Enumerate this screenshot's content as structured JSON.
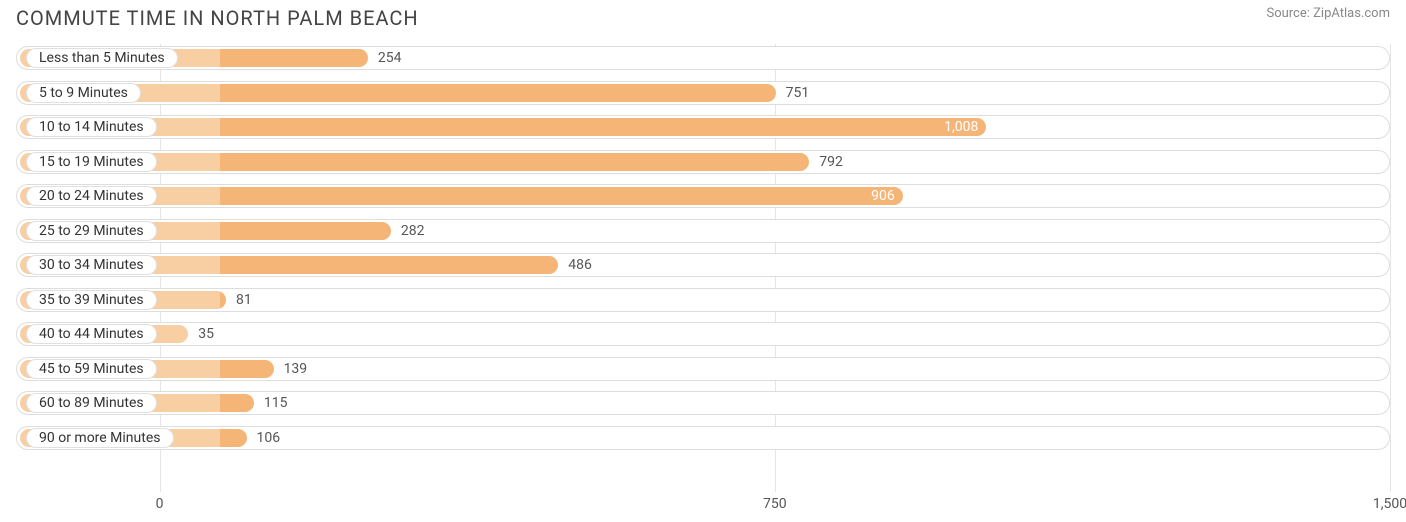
{
  "title": "COMMUTE TIME IN NORTH PALM BEACH",
  "source": "Source: ZipAtlas.com",
  "chart": {
    "type": "bar-horizontal",
    "bar_color": "#f5b576",
    "bar_color_light": "#f8cfa3",
    "track_border": "#dddddd",
    "grid_color": "#e5e5e5",
    "background_color": "#ffffff",
    "label_text_color": "#333333",
    "value_outside_color": "#555555",
    "value_inside_color": "#ffffff",
    "axis_min": -175,
    "axis_max": 1500,
    "axis_ticks": [
      {
        "value": 0,
        "label": "0"
      },
      {
        "value": 750,
        "label": "750"
      },
      {
        "value": 1500,
        "label": "1,500"
      }
    ],
    "value_inside_threshold": 850,
    "rows": [
      {
        "label": "Less than 5 Minutes",
        "value": 254,
        "value_label": "254"
      },
      {
        "label": "5 to 9 Minutes",
        "value": 751,
        "value_label": "751"
      },
      {
        "label": "10 to 14 Minutes",
        "value": 1008,
        "value_label": "1,008"
      },
      {
        "label": "15 to 19 Minutes",
        "value": 792,
        "value_label": "792"
      },
      {
        "label": "20 to 24 Minutes",
        "value": 906,
        "value_label": "906"
      },
      {
        "label": "25 to 29 Minutes",
        "value": 282,
        "value_label": "282"
      },
      {
        "label": "30 to 34 Minutes",
        "value": 486,
        "value_label": "486"
      },
      {
        "label": "35 to 39 Minutes",
        "value": 81,
        "value_label": "81"
      },
      {
        "label": "40 to 44 Minutes",
        "value": 35,
        "value_label": "35"
      },
      {
        "label": "45 to 59 Minutes",
        "value": 139,
        "value_label": "139"
      },
      {
        "label": "60 to 89 Minutes",
        "value": 115,
        "value_label": "115"
      },
      {
        "label": "90 or more Minutes",
        "value": 106,
        "value_label": "106"
      }
    ]
  }
}
